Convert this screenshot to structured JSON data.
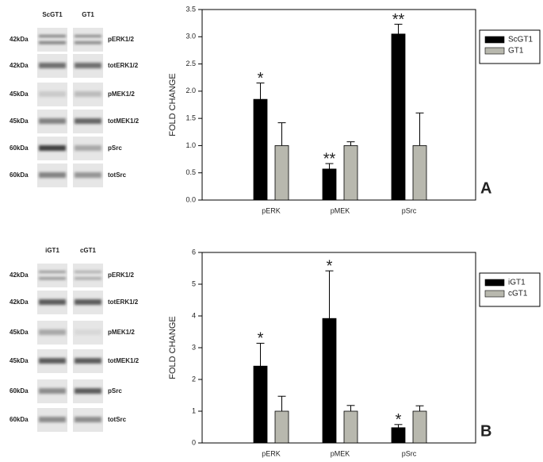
{
  "chart_data": [
    {
      "type": "bar",
      "panel_label": "A",
      "y_label": "FOLD CHANGE",
      "categories": [
        "pERK",
        "pMEK",
        "pSrc"
      ],
      "series": [
        {
          "name": "ScGT1",
          "color": "#000000",
          "values": [
            1.85,
            0.57,
            3.05
          ],
          "errors": [
            0.3,
            0.1,
            0.18
          ],
          "annotations": [
            "*",
            "**",
            "**"
          ]
        },
        {
          "name": "GT1",
          "color": "#b8b8ae",
          "values": [
            1.0,
            1.0,
            1.0
          ],
          "errors": [
            0.42,
            0.07,
            0.6
          ]
        }
      ],
      "ylim": [
        0,
        3.5
      ],
      "yticks": [
        {
          "value": 0,
          "label": "0.0"
        },
        0.5,
        {
          "value": 1,
          "label": "1.0"
        },
        1.5,
        {
          "value": 2,
          "label": "2.0"
        },
        2.5,
        {
          "value": 3,
          "label": "3.0"
        },
        3.5
      ],
      "legend": "outside-right"
    },
    {
      "type": "bar",
      "panel_label": "B",
      "y_label": "FOLD CHANGE",
      "categories": [
        "pERK",
        "pMEK",
        "pSrc"
      ],
      "series": [
        {
          "name": "iGT1",
          "color": "#000000",
          "values": [
            2.42,
            3.92,
            0.48
          ],
          "errors": [
            0.72,
            1.5,
            0.1
          ],
          "annotations": [
            "*",
            "*",
            "*"
          ]
        },
        {
          "name": "cGT1",
          "color": "#b8b8ae",
          "values": [
            1.0,
            1.0,
            1.0
          ],
          "errors": [
            0.47,
            0.18,
            0.17
          ]
        }
      ],
      "ylim": [
        0,
        6
      ],
      "yticks": [
        0,
        1,
        2,
        3,
        4,
        5,
        6
      ],
      "legend": "outside-right"
    }
  ],
  "blots": [
    {
      "lanes": [
        "ScGT1",
        "GT1"
      ],
      "rows": [
        {
          "size": "42kDa",
          "protein": "pERK1/2"
        },
        {
          "size": "42kDa",
          "protein": "totERK1/2"
        },
        {
          "size": "45kDa",
          "protein": "pMEK1/2"
        },
        {
          "size": "45kDa",
          "protein": "totMEK1/2"
        },
        {
          "size": "60kDa",
          "protein": "pSrc"
        },
        {
          "size": "60kDa",
          "protein": "totSrc"
        }
      ]
    },
    {
      "lanes": [
        "iGT1",
        "cGT1"
      ],
      "rows": [
        {
          "size": "42kDa",
          "protein": "pERK1/2"
        },
        {
          "size": "42kDa",
          "protein": "totERK1/2"
        },
        {
          "size": "45kDa",
          "protein": "pMEK1/2"
        },
        {
          "size": "45kDa",
          "protein": "totMEK1/2"
        },
        {
          "size": "60kDa",
          "protein": "pSrc"
        },
        {
          "size": "60kDa",
          "protein": "totSrc"
        }
      ]
    }
  ]
}
